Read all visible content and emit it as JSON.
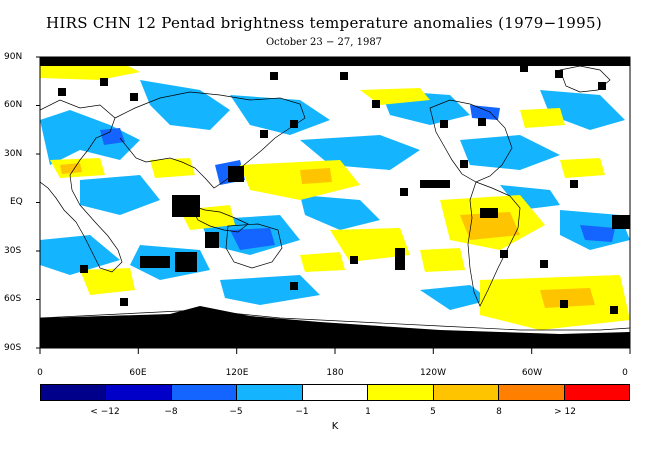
{
  "title": "HIRS CHN 12 Pentad brightness temperature anomalies (1979−1995)",
  "subtitle": "October 23 − 27, 1987",
  "map": {
    "lat_labels": [
      "90N",
      "60N",
      "30N",
      "EQ",
      "30S",
      "60S",
      "90S"
    ],
    "lon_labels": [
      "0",
      "60E",
      "120E",
      "180",
      "120W",
      "60W",
      "0"
    ],
    "unit": "K",
    "colorbar": {
      "colors": [
        "#00008b",
        "#0000c8",
        "#1464ff",
        "#14b4ff",
        "#ffffff",
        "#ffff00",
        "#ffc400",
        "#ff8000",
        "#ff0000"
      ],
      "labels": [
        "< −12",
        "−8",
        "−5",
        "−1",
        "1",
        "5",
        "8",
        "> 12"
      ]
    }
  }
}
